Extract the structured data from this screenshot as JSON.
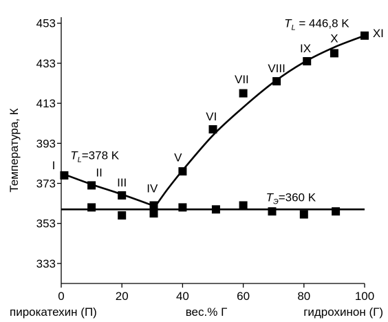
{
  "chart_data": {
    "type": "scatter",
    "ylabel": "Температура, К",
    "x_tick_labels": [
      "0",
      "20",
      "40",
      "60",
      "80",
      "100"
    ],
    "y_tick_labels": [
      "333",
      "353",
      "373",
      "393",
      "413",
      "433",
      "453"
    ],
    "x_ticks": [
      0,
      20,
      40,
      60,
      80,
      100
    ],
    "y_ticks": [
      333,
      353,
      373,
      393,
      413,
      433,
      453
    ],
    "xlim": [
      0,
      100
    ],
    "ylim": [
      323,
      456
    ],
    "bottom_labels": {
      "left": "пирокатехин (П)",
      "center": "вес.% Г",
      "right": "гидрохинон (Г)"
    },
    "series": [
      {
        "values": [
          {
            "x": 1,
            "y": 377
          },
          {
            "x": 10,
            "y": 372
          },
          {
            "x": 20,
            "y": 367
          },
          {
            "x": 30.5,
            "y": 362
          },
          {
            "x": 40,
            "y": 379
          },
          {
            "x": 50,
            "y": 400
          },
          {
            "x": 60,
            "y": 418
          },
          {
            "x": 71,
            "y": 424
          },
          {
            "x": 81,
            "y": 434
          },
          {
            "x": 90,
            "y": 438
          },
          {
            "x": 100,
            "y": 446.8
          }
        ]
      },
      {
        "values": [
          {
            "x": 10,
            "y": 361
          },
          {
            "x": 20,
            "y": 357
          },
          {
            "x": 30.5,
            "y": 358
          },
          {
            "x": 40,
            "y": 361
          },
          {
            "x": 51,
            "y": 360
          },
          {
            "x": 60,
            "y": 362
          },
          {
            "x": 69.5,
            "y": 359
          },
          {
            "x": 80,
            "y": 357.5
          },
          {
            "x": 90.5,
            "y": 359
          }
        ]
      }
    ],
    "curves": {
      "liquidus_left": [
        [
          1,
          377.5
        ],
        [
          10,
          372.5
        ],
        [
          20,
          367.5
        ],
        [
          31,
          361.5
        ]
      ],
      "liquidus_right": [
        [
          31,
          361.5
        ],
        [
          35,
          370
        ],
        [
          40,
          379.5
        ],
        [
          50,
          397
        ],
        [
          60,
          411
        ],
        [
          70,
          423.5
        ],
        [
          80,
          433.5
        ],
        [
          90,
          441
        ],
        [
          100,
          446.8
        ]
      ],
      "eutectic_line": [
        [
          0,
          360
        ],
        [
          100,
          360
        ]
      ]
    },
    "point_labels": [
      {
        "text": "I",
        "x": -2.5,
        "y": 380
      },
      {
        "text": "II",
        "x": 12.5,
        "y": 376.5
      },
      {
        "text": "III",
        "x": 20,
        "y": 371.5
      },
      {
        "text": "IV",
        "x": 30,
        "y": 368.5
      },
      {
        "text": "V",
        "x": 38.5,
        "y": 384
      },
      {
        "text": "VI",
        "x": 49.5,
        "y": 404.5
      },
      {
        "text": "VII",
        "x": 59.5,
        "y": 423
      },
      {
        "text": "VIII",
        "x": 71,
        "y": 428.5
      },
      {
        "text": "IX",
        "x": 80.5,
        "y": 438.5
      },
      {
        "text": "X",
        "x": 90,
        "y": 443.5
      },
      {
        "text": "XI",
        "x": 104.5,
        "y": 446
      }
    ],
    "annotations": [
      {
        "main": "T",
        "sub": "L",
        "rest": " = 446,8 K",
        "x": 73.5,
        "y": 451
      },
      {
        "main": "T",
        "sub": "L",
        "rest": "=378 K",
        "x": 3,
        "y": 385
      },
      {
        "main": "T",
        "sub": "Э",
        "rest": "=360 K",
        "x": 67.5,
        "y": 364
      }
    ]
  }
}
